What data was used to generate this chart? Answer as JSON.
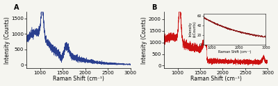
{
  "panel_a": {
    "label": "A",
    "line_color": "#2a3f8f",
    "x_range": [
      700,
      3000
    ],
    "y_range": [
      -100,
      1700
    ],
    "yticks": [
      0,
      500,
      1000,
      1500
    ],
    "xlabel": "Raman Shift (cm⁻¹)",
    "ylabel": "Intensity (Counts)",
    "peak1_x": 1050,
    "peak1_y": 1580,
    "peak2_x": 1350,
    "peak2_y": 750,
    "peak3_x": 1580,
    "peak3_y": 800,
    "noise_base": 200,
    "noise_amp": 150,
    "decay_start": 1600,
    "decay_rate": 0.002
  },
  "panel_b": {
    "label": "B",
    "line_color": "#cc1111",
    "x_range": [
      700,
      3000
    ],
    "y_range": [
      -100,
      2300
    ],
    "yticks": [
      0,
      500,
      1000,
      1500,
      2000
    ],
    "xlabel": "Raman Shift (cm⁻¹)",
    "ylabel": "Intensity (Counts)",
    "peak1_x": 1050,
    "peak1_y": 2200,
    "peak2_x": 1600,
    "peak2_y": 700,
    "peak3_x": 2900,
    "peak3_y": 750,
    "noise_base": 400,
    "noise_amp": 250
  },
  "inset": {
    "line_color": "#8b1a1a",
    "x_range": [
      700,
      3000
    ],
    "y_range": [
      0,
      65
    ],
    "yticks": [
      0,
      20,
      40,
      60
    ],
    "xlabel": "Raman Shift (cm⁻¹)",
    "ylabel": "Intensity\n(kCounts)"
  },
  "background_color": "#f5f5f0",
  "tick_fontsize": 5,
  "label_fontsize": 5.5,
  "panel_label_fontsize": 7
}
